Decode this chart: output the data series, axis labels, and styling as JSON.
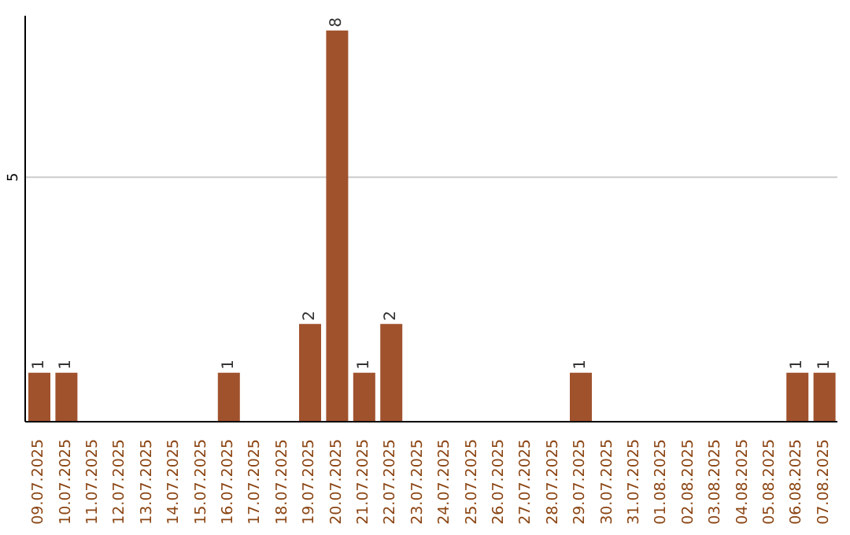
{
  "chart_data": {
    "type": "bar",
    "categories": [
      "09.07.2025",
      "10.07.2025",
      "11.07.2025",
      "12.07.2025",
      "13.07.2025",
      "14.07.2025",
      "15.07.2025",
      "16.07.2025",
      "17.07.2025",
      "18.07.2025",
      "19.07.2025",
      "20.07.2025",
      "21.07.2025",
      "22.07.2025",
      "23.07.2025",
      "24.07.2025",
      "25.07.2025",
      "26.07.2025",
      "27.07.2025",
      "28.07.2025",
      "29.07.2025",
      "30.07.2025",
      "31.07.2025",
      "01.08.2025",
      "02.08.2025",
      "03.08.2025",
      "04.08.2025",
      "05.08.2025",
      "06.08.2025",
      "07.08.2025"
    ],
    "values": [
      1,
      1,
      0,
      0,
      0,
      0,
      0,
      1,
      0,
      0,
      2,
      8,
      1,
      2,
      0,
      0,
      0,
      0,
      0,
      0,
      1,
      0,
      0,
      0,
      0,
      0,
      0,
      0,
      1,
      1
    ],
    "value_labels": [
      "1",
      "1",
      null,
      null,
      null,
      null,
      null,
      "1",
      null,
      null,
      "2",
      "8",
      "1",
      "2",
      null,
      null,
      null,
      null,
      null,
      null,
      "1",
      null,
      null,
      null,
      null,
      null,
      null,
      null,
      "1",
      "1"
    ],
    "color": "#a0522d",
    "ylim": [
      0,
      8.3
    ],
    "yticks": [
      5
    ],
    "grid": "y"
  }
}
